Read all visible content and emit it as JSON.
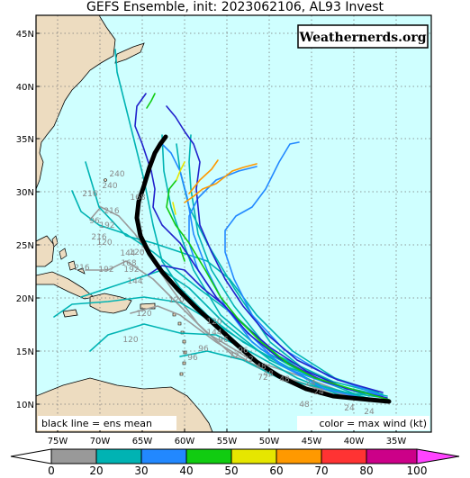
{
  "title": "GEFS Ensemble, init: 2023062106, AL93 Invest",
  "brand": "Weathernerds.org",
  "legend_left": "black line = ens mean",
  "legend_right": "color = max wind (kt)",
  "lon_labels": [
    "75W",
    "70W",
    "65W",
    "60W",
    "55W",
    "50W",
    "45W",
    "40W",
    "35W"
  ],
  "lat_labels": [
    "45N",
    "40N",
    "35N",
    "30N",
    "25N",
    "20N",
    "15N",
    "10N"
  ],
  "colorbar_ticks": [
    "0",
    "20",
    "30",
    "40",
    "50",
    "60",
    "70",
    "80",
    "100"
  ],
  "colorbar_colors": [
    "#999999",
    "#00b3b3",
    "#2288ff",
    "#2222cc",
    "#11cc11",
    "#e6e600",
    "#ff9900",
    "#ff3333",
    "#cc0088",
    "#ff44ff"
  ],
  "land_color": "#eddcc0",
  "ocean_color": "#cfffff",
  "track_labels": [
    "240",
    "216",
    "240",
    "168",
    "216",
    "96",
    "192",
    "216",
    "120",
    "144",
    "120",
    "168",
    "192",
    "216",
    "192",
    "144",
    "120",
    "96",
    "72",
    "48",
    "24",
    "120",
    "96",
    "48",
    "96",
    "72",
    "48",
    "24",
    "144",
    "120",
    "120",
    "96",
    "72",
    "48",
    "24",
    "48",
    "24"
  ]
}
